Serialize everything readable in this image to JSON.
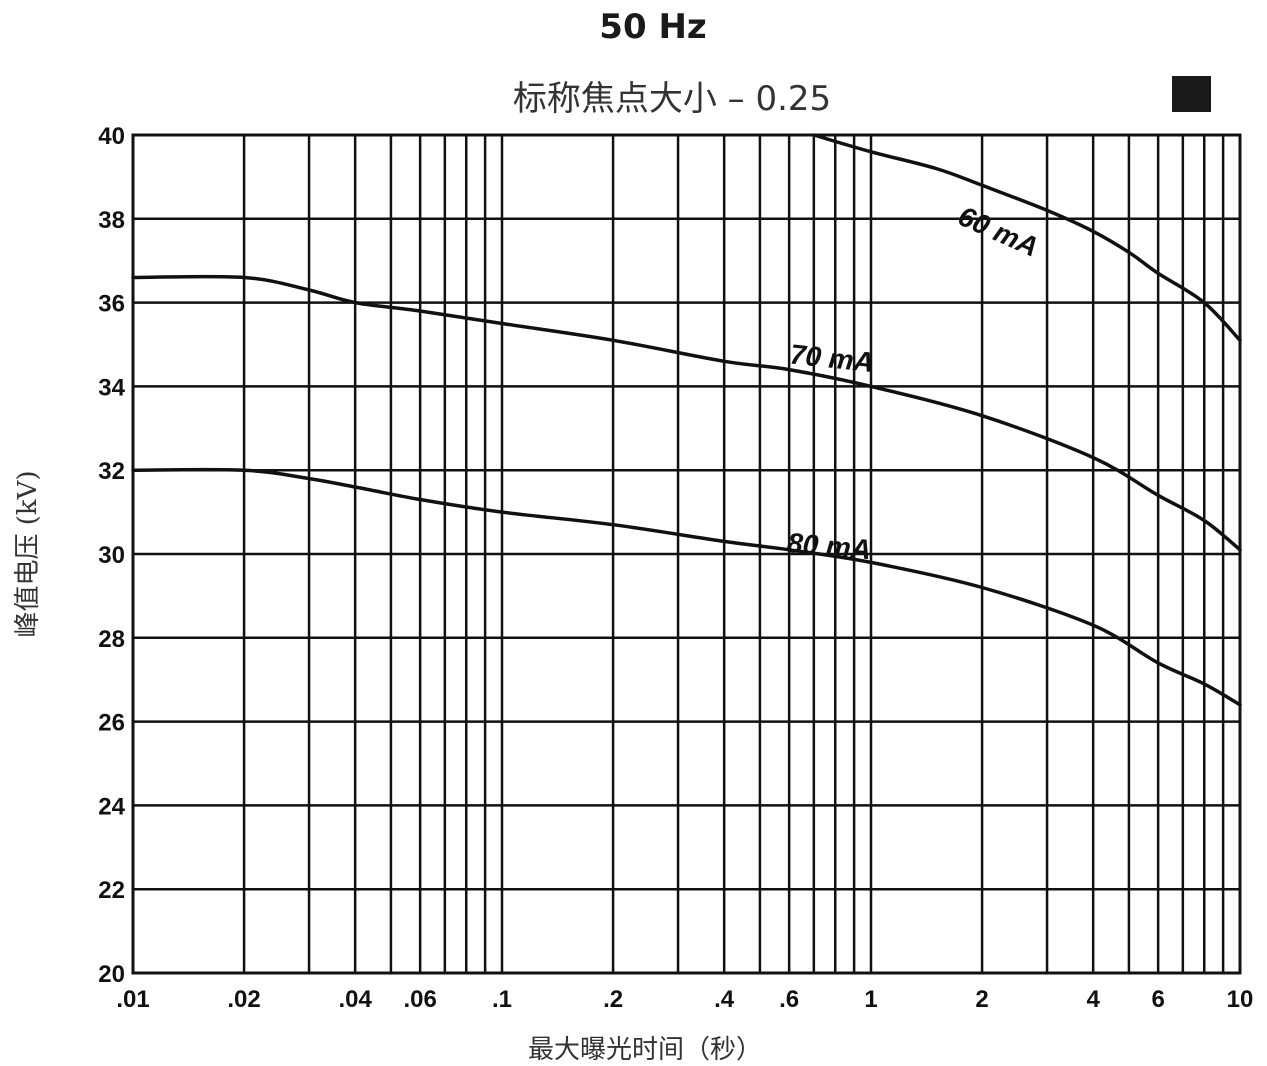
{
  "chart_data": {
    "type": "line",
    "title": "50 Hz",
    "subtitle": "标称焦点大小 – 0.25",
    "xlabel": "最大曝光时间（秒）",
    "ylabel": "峰值电压 (kV)",
    "xscale": "log",
    "xlim": [
      0.01,
      10
    ],
    "ylim": [
      20,
      40
    ],
    "grid": true,
    "legend_marker_color": "#1a1a1a",
    "x_ticks": [
      {
        "value": 0.01,
        "label": ".01"
      },
      {
        "value": 0.02,
        "label": ".02"
      },
      {
        "value": 0.04,
        "label": ".04"
      },
      {
        "value": 0.06,
        "label": ".06"
      },
      {
        "value": 0.1,
        "label": ".1"
      },
      {
        "value": 0.2,
        "label": ".2"
      },
      {
        "value": 0.4,
        "label": ".4"
      },
      {
        "value": 0.6,
        "label": ".6"
      },
      {
        "value": 1,
        "label": "1"
      },
      {
        "value": 2,
        "label": "2"
      },
      {
        "value": 4,
        "label": "4"
      },
      {
        "value": 6,
        "label": "6"
      },
      {
        "value": 10,
        "label": "10"
      }
    ],
    "y_ticks": [
      {
        "value": 20,
        "label": "20"
      },
      {
        "value": 22,
        "label": "22"
      },
      {
        "value": 24,
        "label": "24"
      },
      {
        "value": 26,
        "label": "26"
      },
      {
        "value": 28,
        "label": "28"
      },
      {
        "value": 30,
        "label": "30"
      },
      {
        "value": 32,
        "label": "32"
      },
      {
        "value": 34,
        "label": "34"
      },
      {
        "value": 36,
        "label": "36"
      },
      {
        "value": 38,
        "label": "38"
      },
      {
        "value": 40,
        "label": "40"
      }
    ],
    "series": [
      {
        "name": "60 mA",
        "x": [
          0.7,
          1.0,
          1.5,
          2.0,
          3.0,
          4.0,
          5.0,
          6.0,
          8.0,
          10.0
        ],
        "y": [
          40.0,
          39.6,
          39.2,
          38.8,
          38.2,
          37.7,
          37.2,
          36.7,
          36.0,
          35.1
        ]
      },
      {
        "name": "70 mA",
        "x": [
          0.01,
          0.02,
          0.03,
          0.04,
          0.06,
          0.1,
          0.2,
          0.4,
          0.6,
          1.0,
          2.0,
          4.0,
          6.0,
          8.0,
          10.0
        ],
        "y": [
          36.6,
          36.6,
          36.3,
          36.0,
          35.8,
          35.5,
          35.1,
          34.6,
          34.4,
          34.0,
          33.3,
          32.3,
          31.4,
          30.8,
          30.1
        ]
      },
      {
        "name": "80 mA",
        "x": [
          0.01,
          0.02,
          0.03,
          0.04,
          0.06,
          0.1,
          0.2,
          0.4,
          0.6,
          1.0,
          2.0,
          4.0,
          6.0,
          8.0,
          10.0
        ],
        "y": [
          32.0,
          32.0,
          31.8,
          31.6,
          31.3,
          31.0,
          30.7,
          30.3,
          30.1,
          29.8,
          29.2,
          28.3,
          27.4,
          26.9,
          26.4
        ]
      }
    ]
  }
}
